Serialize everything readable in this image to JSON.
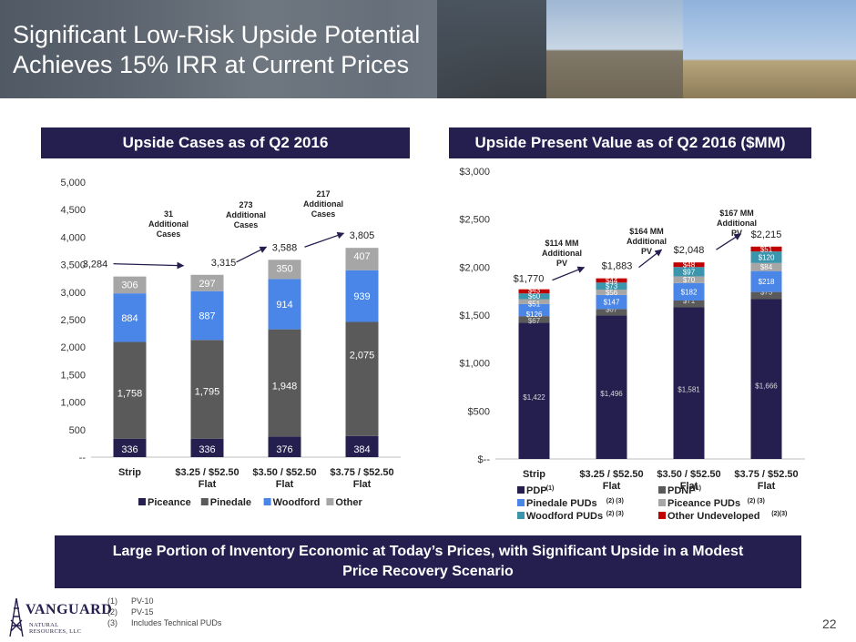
{
  "header": {
    "title_line1": "Significant Low-Risk Upside Potential",
    "title_line2": "Achieves 15% IRR at Current Prices"
  },
  "left_header": "Upside Cases as of Q2 2016",
  "right_header": "Upside Present Value as of Q2 2016 ($MM)",
  "footer_banner": {
    "line1": "Large Portion of Inventory Economic at Today’s Prices, with Significant Upside in a Modest",
    "line2": "Price Recovery Scenario"
  },
  "notes": [
    {
      "num": "(1)",
      "text": "PV-10"
    },
    {
      "num": "(2)",
      "text": "PV-15"
    },
    {
      "num": "(3)",
      "text": "Includes Technical PUDs"
    }
  ],
  "page_number": "22",
  "logo": {
    "word": "VANGUARD",
    "sub": "NATURAL RESOURCES, LLC"
  },
  "colors": {
    "navy": "#241f4f",
    "dark_gray": "#5a5a5a",
    "blue": "#4a86e8",
    "light_gray": "#a6a6a6",
    "teal": "#3a95ad",
    "red": "#c00000"
  },
  "chart_data": [
    {
      "type": "bar",
      "stacked": true,
      "title": "Upside Cases as of Q2 2016",
      "categories": [
        "Strip",
        "$3.25 / $52.50 Flat",
        "$3.50 / $52.50 Flat",
        "$3.75 / $52.50 Flat"
      ],
      "series": [
        {
          "name": "Piceance",
          "color": "#241f4f",
          "values": [
            336,
            336,
            376,
            384
          ],
          "labels": [
            "336",
            "336",
            "376",
            "384"
          ]
        },
        {
          "name": "Pinedale",
          "color": "#5a5a5a",
          "values": [
            1758,
            1795,
            1948,
            2075
          ],
          "labels": [
            "1,758",
            "1,795",
            "1,948",
            "2,075"
          ]
        },
        {
          "name": "Woodford",
          "color": "#4a86e8",
          "values": [
            884,
            887,
            914,
            939
          ],
          "labels": [
            "884",
            "887",
            "914",
            "939"
          ]
        },
        {
          "name": "Other",
          "color": "#a6a6a6",
          "values": [
            306,
            297,
            350,
            407
          ],
          "labels": [
            "306",
            "297",
            "350",
            "407"
          ]
        }
      ],
      "totals": [
        "3,284",
        "3,315",
        "3,588",
        "3,805"
      ],
      "ylim": [
        0,
        5000
      ],
      "yticks": [
        0,
        500,
        1000,
        1500,
        2000,
        2500,
        3000,
        3500,
        4000,
        4500,
        5000
      ],
      "ytick_labels": [
        "--",
        "500",
        "1,000",
        "1,500",
        "2,000",
        "2,500",
        "3,000",
        "3,500",
        "4,000",
        "4,500",
        "5,000"
      ],
      "annotations": [
        {
          "lines": [
            "31",
            "Additional",
            "Cases"
          ],
          "between": [
            0,
            1
          ]
        },
        {
          "lines": [
            "273",
            "Additional",
            "Cases"
          ],
          "between": [
            1,
            2
          ]
        },
        {
          "lines": [
            "217",
            "Additional",
            "Cases"
          ],
          "between": [
            2,
            3
          ]
        }
      ],
      "legend_position": "bottom"
    },
    {
      "type": "bar",
      "stacked": true,
      "title": "Upside Present Value as of Q2 2016 ($MM)",
      "categories": [
        "Strip",
        "$3.25 / $52.50 Flat",
        "$3.50 / $52.50 Flat",
        "$3.75 / $52.50 Flat"
      ],
      "series": [
        {
          "name": "PDP",
          "sup": "(1)",
          "color": "#241f4f",
          "values": [
            1422,
            1496,
            1581,
            1666
          ],
          "labels": [
            "$1,422",
            "$1,496",
            "$1,581",
            "$1,666"
          ]
        },
        {
          "name": "PDNP",
          "sup": "(1)",
          "color": "#5a5a5a",
          "values": [
            67,
            67,
            71,
            75
          ],
          "labels": [
            "$67",
            "$67",
            "$71",
            "$75"
          ]
        },
        {
          "name": "Pinedale PUDs",
          "sup": "(2) (3)",
          "color": "#4a86e8",
          "values": [
            126,
            147,
            182,
            218
          ],
          "labels": [
            "$126",
            "$147",
            "$182",
            "$218"
          ]
        },
        {
          "name": "Piceance PUDs",
          "sup": "(2) (3)",
          "color": "#a6a6a6",
          "values": [
            51,
            56,
            70,
            84
          ],
          "labels": [
            "$51",
            "$56",
            "$70",
            "$84"
          ]
        },
        {
          "name": "Woodford PUDs",
          "sup": "(2) (3)",
          "color": "#3a95ad",
          "values": [
            60,
            73,
            97,
            120
          ],
          "labels": [
            "$60",
            "$73",
            "$97",
            "$120"
          ]
        },
        {
          "name": "Other Undeveloped",
          "sup": "(2)(3)",
          "color": "#c00000",
          "values": [
            43,
            44,
            48,
            51
          ],
          "labels": [
            "$43",
            "$44",
            "$48",
            "$51"
          ]
        }
      ],
      "totals": [
        "$1,770",
        "$1,883",
        "$2,048",
        "$2,215"
      ],
      "ylim": [
        0,
        3000
      ],
      "yticks": [
        0,
        500,
        1000,
        1500,
        2000,
        2500,
        3000
      ],
      "ytick_labels": [
        "$--",
        "$500",
        "$1,000",
        "$1,500",
        "$2,000",
        "$2,500",
        "$3,000"
      ],
      "annotations": [
        {
          "lines": [
            "$114 MM",
            "Additional",
            "PV"
          ],
          "between": [
            0,
            1
          ]
        },
        {
          "lines": [
            "$164 MM",
            "Additional",
            "PV"
          ],
          "between": [
            1,
            2
          ]
        },
        {
          "lines": [
            "$167 MM",
            "Additional",
            "PV"
          ],
          "between": [
            2,
            3
          ]
        }
      ],
      "legend_position": "bottom"
    }
  ]
}
